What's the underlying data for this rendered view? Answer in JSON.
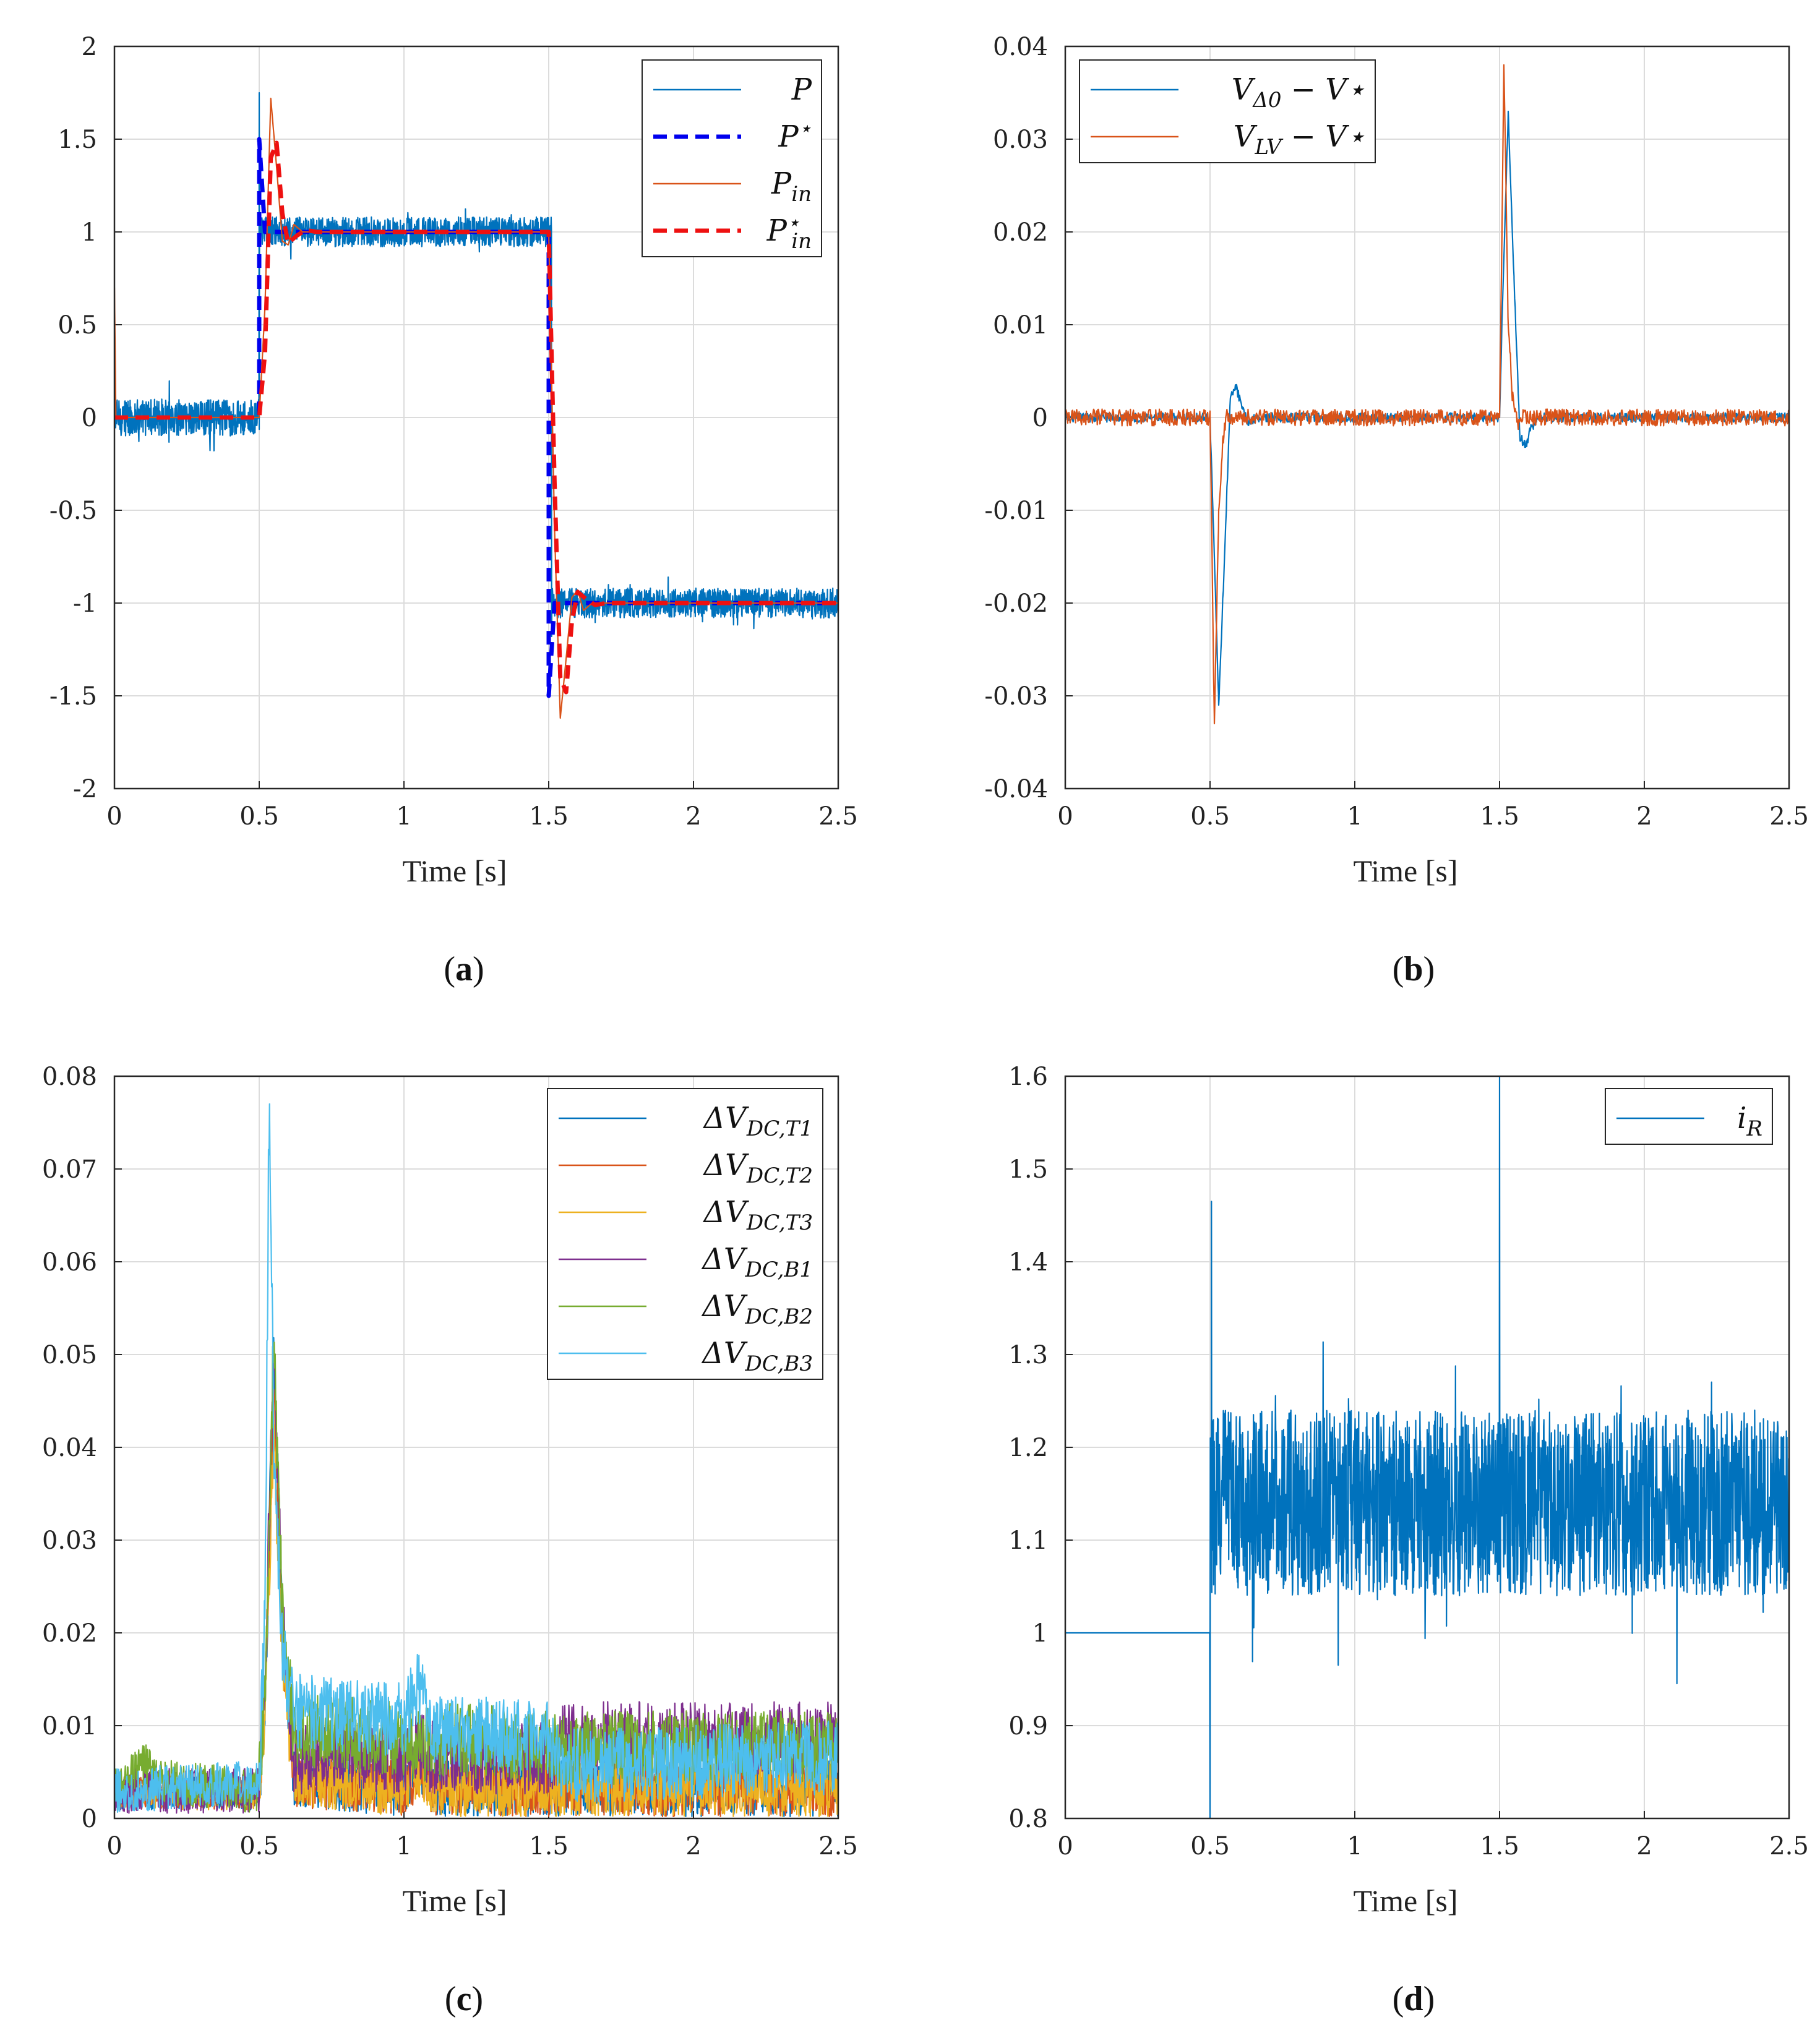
{
  "chart_data": [
    {
      "id": "a",
      "type": "line",
      "caption_label": "(a)",
      "caption_letter": "a",
      "xlabel": "Time [s]",
      "ylabel": "",
      "xlim": [
        0,
        2.5
      ],
      "ylim": [
        -2,
        2
      ],
      "xticks": [
        0,
        0.5,
        1,
        1.5,
        2,
        2.5
      ],
      "xtick_labels": [
        "0",
        "0.5",
        "1",
        "1.5",
        "2",
        "2.5"
      ],
      "yticks": [
        -2,
        -1.5,
        -1,
        -0.5,
        0,
        0.5,
        1,
        1.5,
        2
      ],
      "ytick_labels": [
        "-2",
        "-1.5",
        "-1",
        "-0.5",
        "0",
        "0.5",
        "1",
        "1.5",
        "2"
      ],
      "grid": true,
      "legend_position": "top-right",
      "series": [
        {
          "name": "P",
          "legend_main": "P",
          "legend_sub": "",
          "legend_sup": "",
          "color": "#0072BD",
          "style": "noisy",
          "x": [
            0,
            0.5,
            0.5,
            1.51,
            1.51,
            2.5
          ],
          "y": [
            0,
            0,
            1,
            1,
            -1,
            -1
          ],
          "noise_amp": [
            0.1,
            0.08,
            0.08
          ],
          "spikes": [
            [
              0.5,
              1.75
            ],
            [
              1.51,
              -1.18
            ]
          ]
        },
        {
          "name": "P*",
          "legend_main": "P",
          "legend_sub": "",
          "legend_sup": "⋆",
          "color": "#0000EE",
          "style": "dashed",
          "x": [
            0,
            0.5,
            0.5,
            0.52,
            1.5,
            1.5,
            1.52,
            2.5
          ],
          "y": [
            0,
            0,
            1.5,
            1,
            1,
            -1.5,
            -1,
            -1
          ]
        },
        {
          "name": "P_in",
          "legend_main": "P",
          "legend_sub": "in",
          "legend_sup": "",
          "color": "#D95319",
          "style": "solid",
          "x": [
            0,
            0.005,
            0.015,
            0.5,
            0.52,
            0.54,
            0.56,
            0.58,
            0.6,
            0.62,
            0.65,
            0.7,
            1.5,
            1.52,
            1.54,
            1.56,
            1.58,
            1.6,
            1.62,
            1.65,
            1.7,
            2.5
          ],
          "y": [
            0.7,
            0,
            0,
            0,
            0.6,
            1.72,
            1.35,
            0.95,
            0.93,
            1.04,
            1.0,
            1.0,
            1.0,
            -0.6,
            -1.62,
            -1.3,
            -0.97,
            -0.93,
            -1.04,
            -1.0,
            -1.0,
            -1.0
          ]
        },
        {
          "name": "P_in*",
          "legend_main": "P",
          "legend_sub": "in",
          "legend_sup": "⋆",
          "color": "#EE1111",
          "style": "dashed",
          "x": [
            0,
            0.5,
            0.52,
            0.54,
            0.56,
            0.58,
            0.6,
            0.63,
            0.66,
            0.7,
            1.5,
            1.52,
            1.54,
            1.56,
            1.58,
            1.6,
            1.63,
            1.66,
            1.7,
            2.5
          ],
          "y": [
            0,
            0,
            0.35,
            1.4,
            1.48,
            1.1,
            0.94,
            0.98,
            1.01,
            1.0,
            1.0,
            -0.35,
            -1.4,
            -1.48,
            -1.1,
            -0.94,
            -0.98,
            -1.01,
            -1.0,
            -1.0
          ]
        }
      ]
    },
    {
      "id": "b",
      "type": "line",
      "caption_label": "(b)",
      "caption_letter": "b",
      "xlabel": "Time [s]",
      "ylabel": "",
      "xlim": [
        0,
        2.5
      ],
      "ylim": [
        -0.04,
        0.04
      ],
      "xticks": [
        0,
        0.5,
        1,
        1.5,
        2,
        2.5
      ],
      "xtick_labels": [
        "0",
        "0.5",
        "1",
        "1.5",
        "2",
        "2.5"
      ],
      "yticks": [
        -0.04,
        -0.03,
        -0.02,
        -0.01,
        0,
        0.01,
        0.02,
        0.03,
        0.04
      ],
      "ytick_labels": [
        "-0.04",
        "-0.03",
        "-0.02",
        "-0.01",
        "0",
        "0.01",
        "0.02",
        "0.03",
        "0.04"
      ],
      "grid": true,
      "legend_position": "top-left",
      "series": [
        {
          "name": "V_Δ0 − V*",
          "legend_main": "V",
          "legend_sub": "Δ0",
          "legend_sup": "",
          "legend_tail": " − V⋆",
          "color": "#0072BD",
          "style": "solid",
          "x": [
            0,
            0.5,
            0.51,
            0.53,
            0.55,
            0.57,
            0.59,
            0.61,
            0.63,
            0.66,
            1.5,
            1.51,
            1.53,
            1.55,
            1.57,
            1.59,
            1.61,
            1.64,
            2.5
          ],
          "y": [
            0,
            0,
            -0.01,
            -0.031,
            -0.015,
            0.002,
            0.0034,
            0.001,
            -0.0005,
            0,
            0,
            0.012,
            0.033,
            0.015,
            -0.002,
            -0.0032,
            -0.001,
            0,
            0
          ],
          "noise_amp": 0.0005
        },
        {
          "name": "V_LV − V*",
          "legend_main": "V",
          "legend_sub": "LV",
          "legend_sup": "",
          "legend_tail": " − V⋆",
          "color": "#D95319",
          "style": "solid",
          "x": [
            0,
            0.5,
            0.505,
            0.515,
            0.53,
            0.545,
            0.56,
            0.58,
            1.5,
            1.505,
            1.515,
            1.53,
            1.545,
            1.56,
            1.58,
            2.5
          ],
          "y": [
            0,
            0,
            -0.01,
            -0.033,
            -0.01,
            -0.002,
            0.0005,
            0,
            0,
            0.012,
            0.038,
            0.01,
            0.002,
            -0.0005,
            0,
            0
          ],
          "noise_amp": 0.0009
        }
      ]
    },
    {
      "id": "c",
      "type": "line",
      "caption_label": "(c)",
      "caption_letter": "c",
      "xlabel": "Time [s]",
      "ylabel": "",
      "xlim": [
        0,
        2.5
      ],
      "ylim": [
        0,
        0.08
      ],
      "xticks": [
        0,
        0.5,
        1,
        1.5,
        2,
        2.5
      ],
      "xtick_labels": [
        "0",
        "0.5",
        "1",
        "1.5",
        "2",
        "2.5"
      ],
      "yticks": [
        0,
        0.01,
        0.02,
        0.03,
        0.04,
        0.05,
        0.06,
        0.07,
        0.08
      ],
      "ytick_labels": [
        "0",
        "0.01",
        "0.02",
        "0.03",
        "0.04",
        "0.05",
        "0.06",
        "0.07",
        "0.08"
      ],
      "grid": true,
      "legend_position": "top-right",
      "series": [
        {
          "name": "ΔV_DC,T1",
          "legend_main": "ΔV",
          "legend_sub": "DC,T1",
          "legend_sup": "",
          "color": "#0072BD",
          "style": "rectnoise",
          "x": [
            0,
            0.5,
            0.52,
            0.55,
            0.58,
            0.62,
            1.0,
            1.05,
            1.1,
            1.55,
            2.5
          ],
          "y": [
            0.002,
            0.002,
            0.01,
            0.05,
            0.02,
            0.003,
            0.002,
            0.005,
            0.002,
            0.002,
            0.002
          ],
          "noise_amp": 0.003
        },
        {
          "name": "ΔV_DC,T2",
          "legend_main": "ΔV",
          "legend_sub": "DC,T2",
          "legend_sup": "",
          "color": "#D95319",
          "style": "rectnoise",
          "x": [
            0,
            0.5,
            0.52,
            0.55,
            0.58,
            0.62,
            1.0,
            1.05,
            1.1,
            1.55,
            2.5
          ],
          "y": [
            0.002,
            0.002,
            0.012,
            0.045,
            0.018,
            0.003,
            0.002,
            0.004,
            0.002,
            0.002,
            0.002
          ],
          "noise_amp": 0.003
        },
        {
          "name": "ΔV_DC,T3",
          "legend_main": "ΔV",
          "legend_sub": "DC,T3",
          "legend_sup": "",
          "color": "#EDB120",
          "style": "rectnoise",
          "x": [
            0,
            0.5,
            0.52,
            0.55,
            0.58,
            0.62,
            1.0,
            1.05,
            1.1,
            1.55,
            2.5
          ],
          "y": [
            0.002,
            0.002,
            0.01,
            0.04,
            0.015,
            0.003,
            0.002,
            0.004,
            0.002,
            0.002,
            0.002
          ],
          "noise_amp": 0.003
        },
        {
          "name": "ΔV_DC,B1",
          "legend_main": "ΔV",
          "legend_sub": "DC,B1",
          "legend_sup": "",
          "color": "#7E2F8E",
          "style": "rectnoise",
          "x": [
            0,
            0.5,
            0.52,
            0.55,
            0.58,
            0.62,
            1.0,
            1.05,
            1.1,
            1.5,
            1.55,
            2.5
          ],
          "y": [
            0.002,
            0.002,
            0.012,
            0.05,
            0.02,
            0.005,
            0.005,
            0.006,
            0.005,
            0.005,
            0.007,
            0.007
          ],
          "noise_amp": 0.004
        },
        {
          "name": "ΔV_DC,B2",
          "legend_main": "ΔV",
          "legend_sub": "DC,B2",
          "legend_sup": "",
          "color": "#77AC30",
          "style": "rectnoise",
          "x": [
            0,
            0.1,
            0.15,
            0.5,
            0.52,
            0.55,
            0.58,
            0.62,
            1.0,
            1.05,
            1.1,
            1.55,
            2.5
          ],
          "y": [
            0.002,
            0.005,
            0.003,
            0.002,
            0.012,
            0.05,
            0.02,
            0.008,
            0.007,
            0.006,
            0.007,
            0.006,
            0.006
          ],
          "noise_amp": 0.004
        },
        {
          "name": "ΔV_DC,B3",
          "legend_main": "ΔV",
          "legend_sub": "DC,B3",
          "legend_sup": "",
          "color": "#4DBEEE",
          "style": "rectnoise",
          "x": [
            0,
            0.5,
            0.52,
            0.535,
            0.55,
            0.58,
            0.62,
            1.0,
            1.05,
            1.1,
            1.5,
            1.55,
            2.5
          ],
          "y": [
            0.002,
            0.003,
            0.02,
            0.078,
            0.04,
            0.016,
            0.01,
            0.009,
            0.013,
            0.008,
            0.007,
            0.004,
            0.005
          ],
          "noise_amp": 0.004
        }
      ]
    },
    {
      "id": "d",
      "type": "line",
      "caption_label": "(d)",
      "caption_letter": "d",
      "xlabel": "Time [s]",
      "ylabel": "",
      "xlim": [
        0,
        2.5
      ],
      "ylim": [
        0.8,
        1.6
      ],
      "xticks": [
        0,
        0.5,
        1,
        1.5,
        2,
        2.5
      ],
      "xtick_labels": [
        "0",
        "0.5",
        "1",
        "1.5",
        "2",
        "2.5"
      ],
      "yticks": [
        0.8,
        0.9,
        1,
        1.1,
        1.2,
        1.3,
        1.4,
        1.5,
        1.6
      ],
      "ytick_labels": [
        "0.8",
        "0.9",
        "1",
        "1.1",
        "1.2",
        "1.3",
        "1.4",
        "1.5",
        "1.6"
      ],
      "grid": true,
      "legend_position": "top-right",
      "series": [
        {
          "name": "i_R",
          "legend_main": "i",
          "legend_sub": "R",
          "legend_sup": "",
          "color": "#0072BD",
          "style": "noisyband",
          "x": [
            0,
            0.5,
            0.5,
            2.5
          ],
          "y": [
            1,
            1,
            1.14,
            1.14
          ],
          "noise_amp": [
            0,
            0.1
          ],
          "spikes": [
            [
              0.5,
              0.8
            ],
            [
              0.505,
              1.465
            ],
            [
              1.5,
              1.6
            ]
          ]
        }
      ]
    }
  ]
}
